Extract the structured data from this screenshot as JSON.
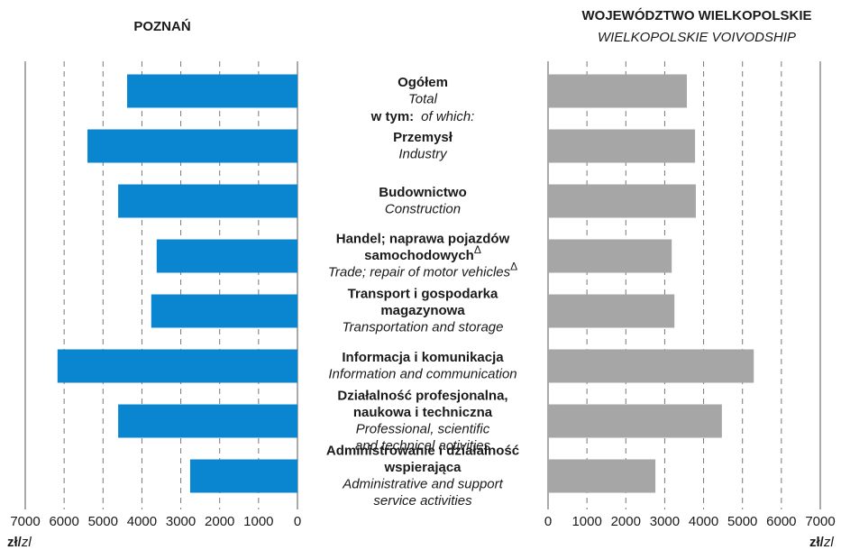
{
  "chart_data": [
    {
      "type": "bar",
      "title": "POZNAŃ",
      "color": "#0a86d0",
      "xreverse": true,
      "xlim": [
        0,
        7000
      ],
      "xticks": [
        0,
        1000,
        2000,
        3000,
        4000,
        5000,
        6000,
        7000
      ],
      "grid": true,
      "xlabel": {
        "pl": "zł/",
        "en": "zl"
      },
      "note": {
        "pl": "w tym:",
        "en": "of which:"
      },
      "categories": [
        {
          "pl": [
            "Ogółem"
          ],
          "en": [
            "Total"
          ]
        },
        {
          "pl": [
            "Przemysł"
          ],
          "en": [
            "Industry"
          ]
        },
        {
          "pl": [
            "Budownictwo"
          ],
          "en": [
            "Construction"
          ]
        },
        {
          "pl": [
            "Handel; naprawa pojazdów",
            "samochodowych"
          ],
          "en": [
            "Trade; repair of motor vehicles"
          ],
          "sup": "Δ"
        },
        {
          "pl": [
            "Transport i gospodarka",
            "magazynowa"
          ],
          "en": [
            "Transportation and storage"
          ]
        },
        {
          "pl": [
            "Informacja i komunikacja"
          ],
          "en": [
            "Information and communication"
          ]
        },
        {
          "pl": [
            "Działalność profesjonalna,",
            "naukowa i techniczna"
          ],
          "en": [
            "Professional, scientific",
            "and technical activities"
          ]
        },
        {
          "pl": [
            "Administrowanie i działalność",
            "wspierająca"
          ],
          "en": [
            "Administrative and support",
            "service activities"
          ]
        }
      ],
      "values": [
        4380,
        5400,
        4610,
        3620,
        3760,
        6170,
        4610,
        2760
      ]
    },
    {
      "type": "bar",
      "title": "WOJEWÓDZTWO WIELKOPOLSKIE",
      "subtitle": "WIELKOPOLSKIE VOIVODSHIP",
      "color": "#a6a6a6",
      "xreverse": false,
      "xlim": [
        0,
        7000
      ],
      "xticks": [
        0,
        1000,
        2000,
        3000,
        4000,
        5000,
        6000,
        7000
      ],
      "grid": true,
      "xlabel": {
        "pl": "zł/",
        "en": "zl"
      },
      "values": [
        3570,
        3780,
        3800,
        3180,
        3250,
        5290,
        4470,
        2760
      ]
    }
  ]
}
